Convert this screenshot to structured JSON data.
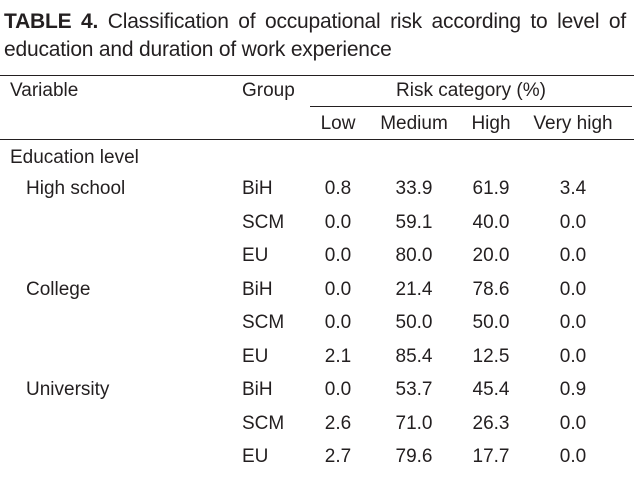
{
  "caption": {
    "label": "TABLE 4.",
    "text": "Classification of occupational risk according to level of education and duration of work experience"
  },
  "header": {
    "variable": "Variable",
    "group": "Group",
    "risk_category": "Risk category (%)",
    "low": "Low",
    "medium": "Medium",
    "high": "High",
    "very_high": "Very high"
  },
  "section": "Education level",
  "rows": [
    {
      "variable": "High school",
      "group": "BiH",
      "low": "0.8",
      "medium": "33.9",
      "high": "61.9",
      "very_high": "3.4"
    },
    {
      "variable": "",
      "group": "SCM",
      "low": "0.0",
      "medium": "59.1",
      "high": "40.0",
      "very_high": "0.0"
    },
    {
      "variable": "",
      "group": "EU",
      "low": "0.0",
      "medium": "80.0",
      "high": "20.0",
      "very_high": "0.0"
    },
    {
      "variable": "College",
      "group": "BiH",
      "low": "0.0",
      "medium": "21.4",
      "high": "78.6",
      "very_high": "0.0"
    },
    {
      "variable": "",
      "group": "SCM",
      "low": "0.0",
      "medium": "50.0",
      "high": "50.0",
      "very_high": "0.0"
    },
    {
      "variable": "",
      "group": "EU",
      "low": "2.1",
      "medium": "85.4",
      "high": "12.5",
      "very_high": "0.0"
    },
    {
      "variable": "University",
      "group": "BiH",
      "low": "0.0",
      "medium": "53.7",
      "high": "45.4",
      "very_high": "0.9"
    },
    {
      "variable": "",
      "group": "SCM",
      "low": "2.6",
      "medium": "71.0",
      "high": "26.3",
      "very_high": "0.0"
    },
    {
      "variable": "",
      "group": "EU",
      "low": "2.7",
      "medium": "79.6",
      "high": "17.7",
      "very_high": "0.0"
    }
  ]
}
